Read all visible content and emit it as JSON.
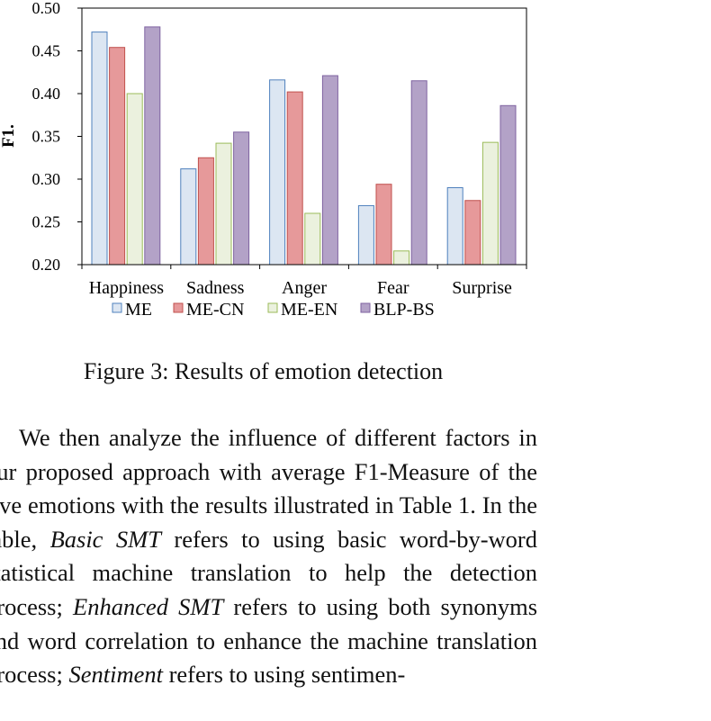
{
  "figure": {
    "caption": "Figure 3: Results of emotion detection"
  },
  "chart_data": {
    "type": "bar",
    "ylabel": "F1.",
    "xlabel": "",
    "ylim": [
      0.2,
      0.5
    ],
    "yticks": [
      "0.20",
      "0.25",
      "0.30",
      "0.35",
      "0.40",
      "0.45",
      "0.50"
    ],
    "categories": [
      "Happiness",
      "Sadness",
      "Anger",
      "Fear",
      "Surprise"
    ],
    "legend_position": "bottom",
    "grid": false,
    "series": [
      {
        "name": "ME",
        "color": "#dce6f2",
        "edge": "#4f81bd",
        "values": [
          0.472,
          0.312,
          0.416,
          0.269,
          0.29
        ]
      },
      {
        "name": "ME-CN",
        "color": "#e6999a",
        "edge": "#c0504d",
        "values": [
          0.454,
          0.325,
          0.402,
          0.294,
          0.275
        ]
      },
      {
        "name": "ME-EN",
        "color": "#ebf1de",
        "edge": "#9bbb59",
        "values": [
          0.4,
          0.342,
          0.26,
          0.216,
          0.343
        ]
      },
      {
        "name": "BLP-BS",
        "color": "#b3a2c7",
        "edge": "#7f63a1",
        "values": [
          0.478,
          0.355,
          0.421,
          0.415,
          0.386
        ]
      }
    ]
  },
  "paragraph": {
    "part1": "We then analyze the influence of different factors in our proposed approach with average F1-Measure of the five emotions with the results illustrated in Table 1.  In the table, ",
    "term1": "Basic SMT",
    "part2": " refers to using basic word-by-word statistical machine translation to help the detection process; ",
    "term2": "Enhanced SMT",
    "part3": " refers to using both synonyms and word correlation to enhance the machine translation process; ",
    "term3": "Sentiment",
    "part4": " refers to using sentimen-"
  }
}
